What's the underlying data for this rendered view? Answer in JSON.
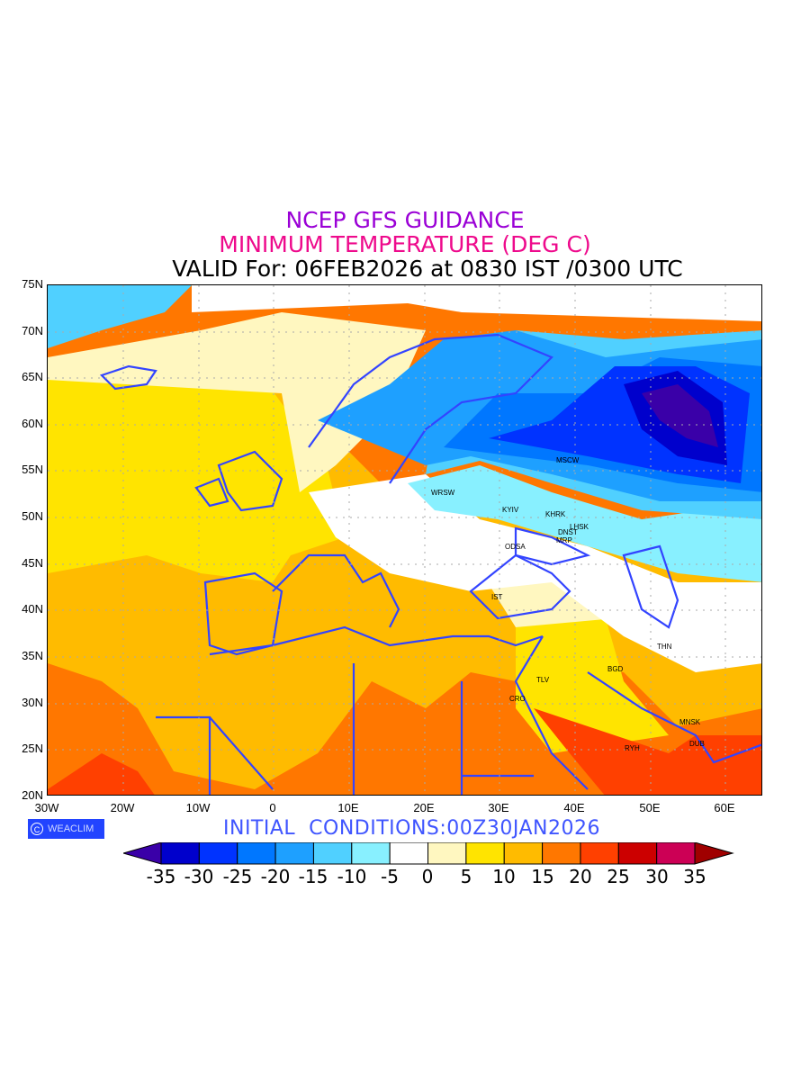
{
  "title": {
    "line1": "NCEP GFS GUIDANCE",
    "line2": "MINIMUM TEMPERATURE (DEG C)",
    "line3": "VALID For: 06FEB2026 at 0830 IST /0300 UTC"
  },
  "axes": {
    "lat_ticks": [
      "75N",
      "70N",
      "65N",
      "60N",
      "55N",
      "50N",
      "45N",
      "40N",
      "35N",
      "30N",
      "25N",
      "20N"
    ],
    "lon_ticks": [
      "30W",
      "20W",
      "10W",
      "0",
      "10E",
      "20E",
      "30E",
      "40E",
      "50E",
      "60E"
    ]
  },
  "cities": [
    "MSCW",
    "WRSW",
    "KYIV",
    "KHRK",
    "LHSK",
    "DNST",
    "MRP",
    "ODSA",
    "IST",
    "THN",
    "BGD",
    "TLV",
    "CRO",
    "MNSK",
    "RYH",
    "DUB"
  ],
  "logo": "WEACLIM",
  "initial_conditions": "INITIAL  CONDITIONS:00Z30JAN2026",
  "colorbar": {
    "labels": [
      "-35",
      "-30",
      "-25",
      "-20",
      "-15",
      "-10",
      "-5",
      "0",
      "5",
      "10",
      "15",
      "20",
      "25",
      "30",
      "35"
    ],
    "colors": [
      "#3a00a8",
      "#0000cc",
      "#0033ff",
      "#0077ff",
      "#1ea0ff",
      "#50d0ff",
      "#88f0ff",
      "#ffffff",
      "#fff7c0",
      "#ffe400",
      "#ffbb00",
      "#ff7700",
      "#ff4000",
      "#cc0000",
      "#cc0055",
      "#a00000"
    ]
  }
}
